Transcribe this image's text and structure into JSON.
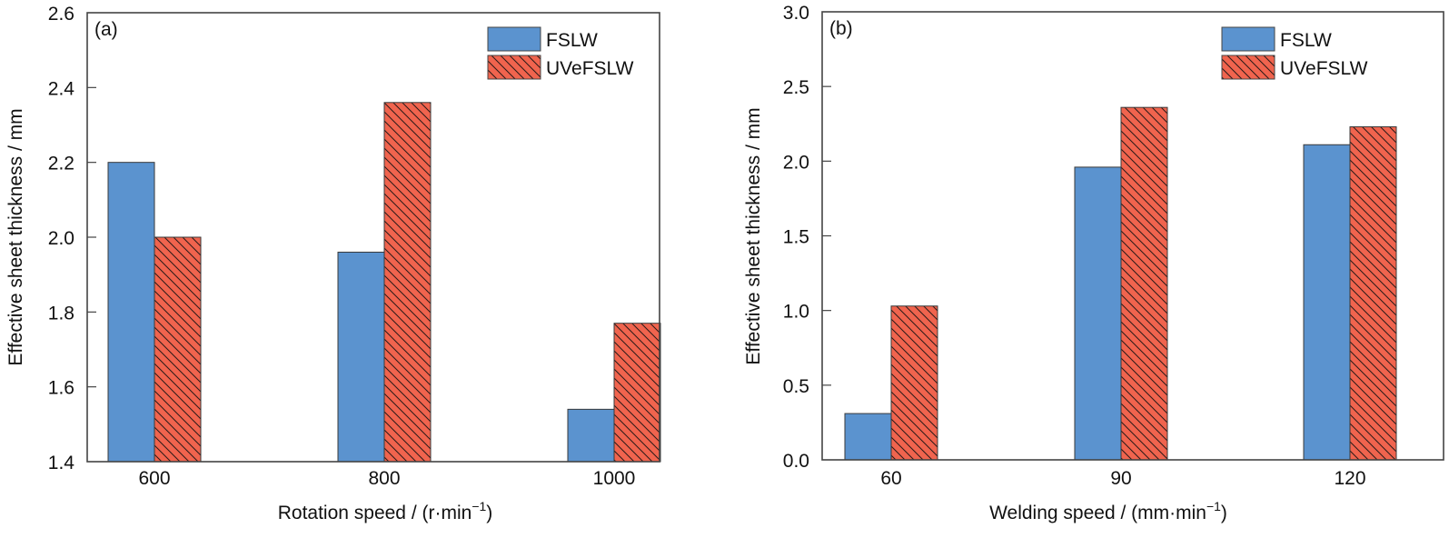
{
  "chart_data": [
    {
      "type": "bar",
      "panel_label": "(a)",
      "title": "",
      "xlabel": "Rotation speed / (r·min",
      "xlabel_sup": "−1",
      "xlabel_tail": ")",
      "ylabel": "Effective sheet thickness / mm",
      "categories": [
        "600",
        "800",
        "1000"
      ],
      "series": [
        {
          "name": "FSLW",
          "values": [
            2.2,
            1.96,
            1.54
          ],
          "color": "#5b93cf",
          "pattern": "solid"
        },
        {
          "name": "UVeFSLW",
          "values": [
            2.0,
            2.36,
            1.77
          ],
          "color": "#f0644e",
          "pattern": "hatch"
        }
      ],
      "ylim": [
        1.4,
        2.6
      ],
      "yticks": [
        "1.4",
        "1.6",
        "1.8",
        "2.0",
        "2.2",
        "2.4",
        "2.6"
      ],
      "ytick_values": [
        1.4,
        1.6,
        1.8,
        2.0,
        2.2,
        2.4,
        2.6
      ],
      "grid": false,
      "legend_position": "top-right"
    },
    {
      "type": "bar",
      "panel_label": "(b)",
      "title": "",
      "xlabel": "Welding speed / (mm·min",
      "xlabel_sup": "−1",
      "xlabel_tail": ")",
      "ylabel": "Effective sheet thickness / mm",
      "categories": [
        "60",
        "90",
        "120"
      ],
      "series": [
        {
          "name": "FSLW",
          "values": [
            0.31,
            1.96,
            2.11
          ],
          "color": "#5b93cf",
          "pattern": "solid"
        },
        {
          "name": "UVeFSLW",
          "values": [
            1.03,
            2.36,
            2.23
          ],
          "color": "#f0644e",
          "pattern": "hatch"
        }
      ],
      "ylim": [
        0.0,
        3.0
      ],
      "yticks": [
        "0.0",
        "0.5",
        "1.0",
        "1.5",
        "2.0",
        "2.5",
        "3.0"
      ],
      "ytick_values": [
        0.0,
        0.5,
        1.0,
        1.5,
        2.0,
        2.5,
        3.0
      ],
      "grid": false,
      "legend_position": "top-right"
    }
  ]
}
